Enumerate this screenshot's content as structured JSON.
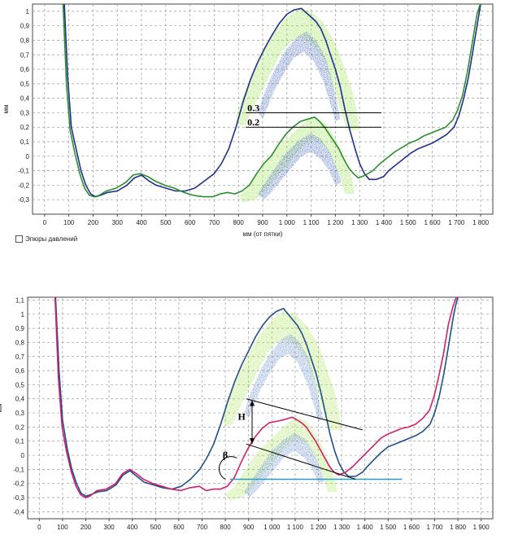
{
  "chart_data": [
    {
      "type": "line",
      "ylabel": "мм",
      "xlabel": "мм (от пятки)",
      "xlim": [
        -50,
        1850
      ],
      "ylim": [
        -0.4,
        1.05
      ],
      "x_ticks": [
        0,
        100,
        200,
        300,
        400,
        500,
        600,
        700,
        800,
        900,
        1000,
        1100,
        1200,
        1300,
        1400,
        1500,
        1600,
        1700,
        1800
      ],
      "x_tick_labels": [
        "0",
        "100",
        "200",
        "300",
        "400",
        "500",
        "600",
        "700",
        "800",
        "900",
        "1 000",
        "1 100",
        "1 200",
        "1 300",
        "1 400",
        "1 500",
        "1 600",
        "1 700",
        "1 800"
      ],
      "y_ticks": [
        -0.3,
        -0.2,
        -0.1,
        0,
        0.1,
        0.2,
        0.3,
        0.4,
        0.5,
        0.6,
        0.7,
        0.8,
        0.9,
        1
      ],
      "y_tick_labels": [
        "-0,3",
        "-0,2",
        "-0,1",
        "0",
        "0,1",
        "0,2",
        "0,3",
        "0,4",
        "0,5",
        "0,6",
        "0,7",
        "0,8",
        "0,9",
        "1"
      ],
      "series": [
        {
          "name": "blue",
          "color": "#1f2f8a",
          "x": [
            80,
            95,
            110,
            130,
            150,
            170,
            190,
            210,
            230,
            260,
            300,
            340,
            370,
            400,
            430,
            460,
            500,
            540,
            580,
            620,
            660,
            700,
            730,
            760,
            790,
            820,
            850,
            880,
            910,
            940,
            970,
            1000,
            1030,
            1060,
            1080,
            1100,
            1120,
            1140,
            1160,
            1180,
            1200,
            1220,
            1240,
            1260,
            1280,
            1300,
            1320,
            1340,
            1370,
            1400,
            1420,
            1450,
            1480,
            1510,
            1540,
            1570,
            1600,
            1630,
            1660,
            1690,
            1710,
            1730,
            1750,
            1770,
            1790,
            1800,
            1810
          ],
          "y": [
            1.1,
            0.55,
            0.2,
            0.05,
            -0.1,
            -0.2,
            -0.26,
            -0.28,
            -0.27,
            -0.25,
            -0.24,
            -0.2,
            -0.15,
            -0.13,
            -0.17,
            -0.2,
            -0.22,
            -0.24,
            -0.24,
            -0.22,
            -0.17,
            -0.12,
            -0.05,
            0.05,
            0.2,
            0.38,
            0.53,
            0.65,
            0.75,
            0.84,
            0.92,
            0.98,
            1.01,
            1.02,
            0.99,
            0.96,
            0.93,
            0.88,
            0.8,
            0.7,
            0.6,
            0.48,
            0.32,
            0.18,
            0.06,
            -0.05,
            -0.12,
            -0.16,
            -0.16,
            -0.14,
            -0.1,
            -0.06,
            -0.02,
            0.02,
            0.05,
            0.07,
            0.09,
            0.12,
            0.15,
            0.2,
            0.28,
            0.4,
            0.55,
            0.75,
            0.95,
            1.05,
            1.1
          ]
        },
        {
          "name": "green",
          "color": "#2b8f2b",
          "x": [
            75,
            90,
            105,
            125,
            145,
            165,
            185,
            205,
            225,
            255,
            295,
            335,
            365,
            395,
            425,
            455,
            495,
            535,
            575,
            615,
            655,
            695,
            725,
            755,
            785,
            815,
            845,
            875,
            905,
            935,
            965,
            995,
            1025,
            1055,
            1075,
            1095,
            1115,
            1135,
            1155,
            1175,
            1195,
            1215,
            1235,
            1255,
            1275,
            1295,
            1325,
            1355,
            1385,
            1415,
            1445,
            1475,
            1505,
            1535,
            1565,
            1595,
            1625,
            1655,
            1685,
            1705,
            1725,
            1745,
            1765,
            1785,
            1800,
            1810
          ],
          "y": [
            1.1,
            0.5,
            0.18,
            0.02,
            -0.12,
            -0.22,
            -0.27,
            -0.28,
            -0.27,
            -0.24,
            -0.22,
            -0.18,
            -0.13,
            -0.12,
            -0.14,
            -0.17,
            -0.2,
            -0.22,
            -0.25,
            -0.27,
            -0.28,
            -0.28,
            -0.26,
            -0.25,
            -0.26,
            -0.24,
            -0.2,
            -0.12,
            -0.05,
            0.0,
            0.08,
            0.15,
            0.2,
            0.24,
            0.25,
            0.26,
            0.27,
            0.24,
            0.2,
            0.15,
            0.1,
            0.05,
            -0.02,
            -0.08,
            -0.12,
            -0.15,
            -0.13,
            -0.1,
            -0.05,
            -0.01,
            0.03,
            0.06,
            0.09,
            0.11,
            0.14,
            0.16,
            0.18,
            0.2,
            0.25,
            0.32,
            0.42,
            0.58,
            0.78,
            0.98,
            1.06,
            1.1
          ]
        }
      ],
      "annotations": [
        {
          "text": "0.3",
          "y": 0.3,
          "x_from": 830,
          "x_to": 1390
        },
        {
          "text": "0.2",
          "y": 0.2,
          "x_from": 830,
          "x_to": 1390
        }
      ],
      "overlays": [
        "pressure-diagram-upper",
        "pressure-diagram-lower"
      ]
    },
    {
      "type": "line",
      "ylabel": "мм",
      "xlim": [
        -50,
        1950
      ],
      "ylim": [
        -0.45,
        1.12
      ],
      "x_ticks": [
        0,
        100,
        200,
        300,
        400,
        500,
        600,
        700,
        800,
        900,
        1000,
        1100,
        1200,
        1300,
        1400,
        1500,
        1600,
        1700,
        1800,
        1900
      ],
      "x_tick_labels": [
        "0",
        "100",
        "200",
        "300",
        "400",
        "500",
        "600",
        "700",
        "800",
        "900",
        "1 000",
        "1 100",
        "1 200",
        "1 300",
        "1 400",
        "1 500",
        "1 600",
        "1 700",
        "1 800",
        "1 900"
      ],
      "y_ticks": [
        -0.4,
        -0.3,
        -0.2,
        -0.1,
        0,
        0.1,
        0.2,
        0.3,
        0.4,
        0.5,
        0.6,
        0.7,
        0.8,
        0.9,
        1,
        1.1
      ],
      "y_tick_labels": [
        "-0,4",
        "-0,3",
        "-0,2",
        "-0,1",
        "0",
        "0,1",
        "0,2",
        "0,3",
        "0,4",
        "0,5",
        "0,6",
        "0,7",
        "0,8",
        "0,9",
        "1",
        "1,1"
      ],
      "series": [
        {
          "name": "blue",
          "color": "#1f4f8a",
          "x": [
            70,
            85,
            100,
            120,
            140,
            160,
            180,
            200,
            220,
            250,
            290,
            330,
            360,
            390,
            420,
            450,
            490,
            530,
            570,
            610,
            650,
            690,
            720,
            750,
            780,
            810,
            840,
            870,
            900,
            930,
            960,
            990,
            1020,
            1050,
            1070,
            1090,
            1110,
            1130,
            1150,
            1170,
            1190,
            1210,
            1230,
            1250,
            1270,
            1290,
            1310,
            1330,
            1360,
            1390,
            1410,
            1440,
            1470,
            1500,
            1530,
            1560,
            1590,
            1620,
            1650,
            1680,
            1700,
            1720,
            1740,
            1760,
            1780,
            1790,
            1800
          ],
          "y": [
            1.12,
            0.6,
            0.25,
            0.05,
            -0.1,
            -0.2,
            -0.27,
            -0.29,
            -0.28,
            -0.26,
            -0.25,
            -0.21,
            -0.14,
            -0.11,
            -0.15,
            -0.19,
            -0.21,
            -0.23,
            -0.24,
            -0.22,
            -0.17,
            -0.1,
            -0.02,
            0.08,
            0.22,
            0.38,
            0.52,
            0.64,
            0.74,
            0.84,
            0.92,
            0.98,
            1.02,
            1.04,
            1.0,
            0.96,
            0.92,
            0.86,
            0.78,
            0.68,
            0.58,
            0.45,
            0.3,
            0.15,
            0.03,
            -0.06,
            -0.12,
            -0.15,
            -0.15,
            -0.12,
            -0.08,
            -0.03,
            0.02,
            0.06,
            0.08,
            0.1,
            0.12,
            0.14,
            0.17,
            0.22,
            0.3,
            0.42,
            0.58,
            0.78,
            0.98,
            1.06,
            1.12
          ]
        },
        {
          "name": "magenta",
          "color": "#d0206a",
          "x": [
            68,
            82,
            98,
            118,
            138,
            158,
            178,
            198,
            218,
            248,
            288,
            328,
            358,
            388,
            418,
            448,
            488,
            528,
            568,
            608,
            648,
            688,
            718,
            748,
            778,
            808,
            838,
            868,
            898,
            928,
            958,
            988,
            1018,
            1048,
            1068,
            1088,
            1108,
            1128,
            1148,
            1168,
            1188,
            1208,
            1228,
            1248,
            1268,
            1288,
            1318,
            1348,
            1378,
            1408,
            1438,
            1468,
            1498,
            1528,
            1558,
            1588,
            1618,
            1648,
            1678,
            1698,
            1718,
            1738,
            1758,
            1778,
            1793,
            1803
          ],
          "y": [
            1.12,
            0.55,
            0.2,
            0.02,
            -0.12,
            -0.22,
            -0.28,
            -0.3,
            -0.29,
            -0.25,
            -0.24,
            -0.2,
            -0.13,
            -0.1,
            -0.13,
            -0.17,
            -0.2,
            -0.22,
            -0.24,
            -0.25,
            -0.23,
            -0.22,
            -0.25,
            -0.24,
            -0.24,
            -0.22,
            -0.16,
            -0.05,
            0.05,
            0.13,
            0.19,
            0.23,
            0.24,
            0.25,
            0.26,
            0.27,
            0.25,
            0.23,
            0.2,
            0.15,
            0.1,
            0.04,
            -0.02,
            -0.08,
            -0.12,
            -0.14,
            -0.12,
            -0.08,
            -0.03,
            0.02,
            0.07,
            0.12,
            0.15,
            0.17,
            0.19,
            0.2,
            0.22,
            0.26,
            0.32,
            0.42,
            0.56,
            0.72,
            0.92,
            1.05,
            1.12,
            1.12
          ]
        }
      ],
      "baseline": {
        "y": -0.17,
        "x_from": 820,
        "x_to": 1560,
        "color": "#2aa0c0"
      },
      "annotations": [
        {
          "text": "H"
        },
        {
          "text": "β"
        }
      ],
      "overlays": [
        "pressure-diagram-upper",
        "pressure-diagram-lower"
      ]
    }
  ],
  "checkbox": {
    "label": "Эпюры давлений",
    "checked": false
  }
}
